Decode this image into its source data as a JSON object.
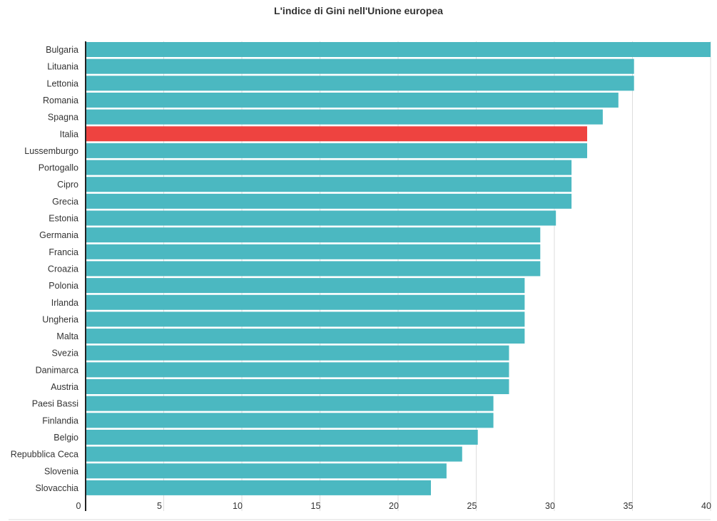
{
  "chart_data": {
    "type": "bar",
    "orientation": "horizontal",
    "title": "L'indice di Gini nell'Unione europea",
    "xlabel": "",
    "ylabel": "",
    "xlim": [
      0,
      40
    ],
    "xticks": [
      "0",
      "5",
      "10",
      "15",
      "20",
      "25",
      "30",
      "35",
      "40"
    ],
    "grid": true,
    "categories": [
      "Bulgaria",
      "Lituania",
      "Lettonia",
      "Romania",
      "Spagna",
      "Italia",
      "Lussemburgo",
      "Portogallo",
      "Cipro",
      "Grecia",
      "Estonia",
      "Germania",
      "Francia",
      "Croazia",
      "Polonia",
      "Irlanda",
      "Ungheria",
      "Malta",
      "Svezia",
      "Danimarca",
      "Austria",
      "Paesi Bassi",
      "Finlandia",
      "Belgio",
      "Repubblica Ceca",
      "Slovenia",
      "Slovacchia"
    ],
    "values": [
      40.2,
      35.1,
      35.1,
      34.1,
      33.1,
      32.1,
      32.1,
      31.1,
      31.1,
      31.1,
      30.1,
      29.1,
      29.1,
      29.1,
      28.1,
      28.1,
      28.1,
      28.1,
      27.1,
      27.1,
      27.1,
      26.1,
      26.1,
      25.1,
      24.1,
      23.1,
      22.1
    ],
    "highlight": "Italia",
    "colors": {
      "default": "#4bb8c1",
      "highlight": "#ee4340",
      "grid": "#dddddd",
      "axis": "#222222"
    }
  }
}
